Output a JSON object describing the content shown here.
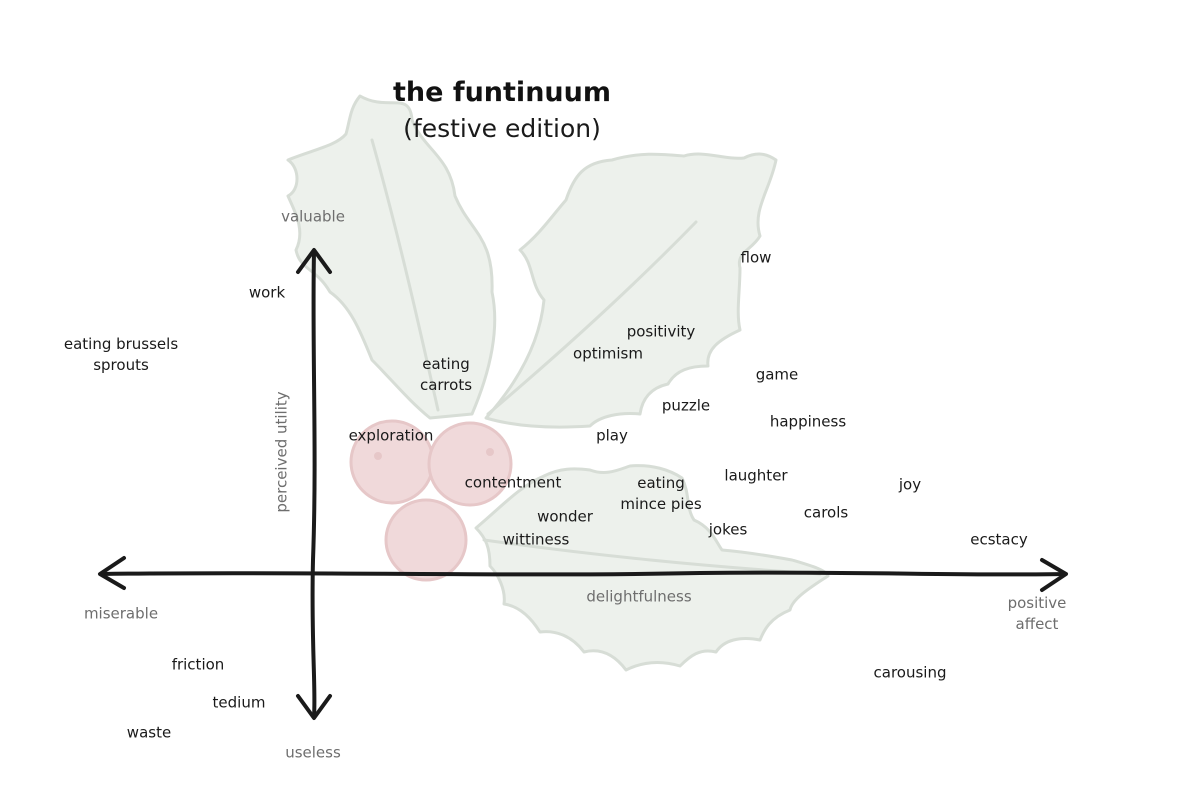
{
  "title": "the funtinuum",
  "subtitle": "(festive edition)",
  "axes": {
    "y_top": "valuable",
    "y_bottom": "useless",
    "y_title": "perceived utility",
    "x_left": "miserable",
    "x_right": [
      "positive",
      "affect"
    ],
    "x_title": "delightfulness"
  },
  "terms": [
    "flow",
    "work",
    [
      "eating brussels",
      "sprouts"
    ],
    "positivity",
    "optimism",
    [
      "eating",
      "carrots"
    ],
    "game",
    "puzzle",
    "happiness",
    "exploration",
    "play",
    "laughter",
    "joy",
    "contentment",
    [
      "eating",
      "mince pies"
    ],
    "carols",
    "wonder",
    "jokes",
    "wittiness",
    "ecstacy",
    "carousing",
    "friction",
    "tedium",
    "waste"
  ],
  "colors": {
    "leaf_fill": "#edf1ec",
    "leaf_stroke": "#d7ddd6",
    "berry_fill": "#f0d9da",
    "berry_stroke": "#e6c7c8",
    "axis": "#1a1a1a",
    "axis_label": "#6e6e6e",
    "text": "#1a1a1a"
  }
}
